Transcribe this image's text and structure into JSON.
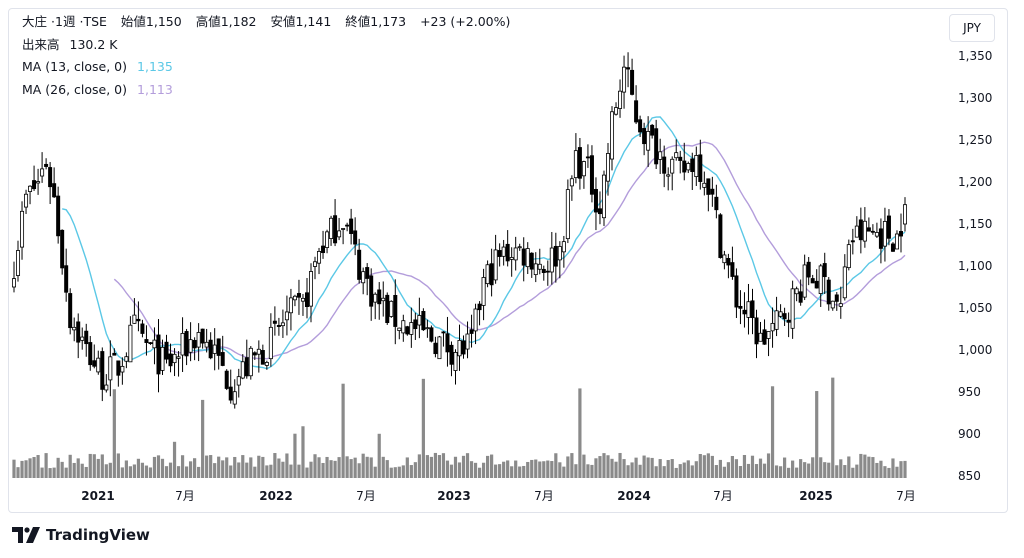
{
  "header": {
    "symbol": "大庄",
    "interval": "1週",
    "exchange": "TSE",
    "open_label": "始値",
    "open_value": "1,150",
    "high_label": "高値",
    "high_value": "1,182",
    "low_label": "安値",
    "low_value": "1,141",
    "close_label": "終値",
    "close_value": "1,173",
    "change": "+23 (+2.00%)"
  },
  "volume_legend": {
    "label": "出来高",
    "value": "130.2 K"
  },
  "ma_legends": [
    {
      "label": "MA (13, close, 0)",
      "value": "1,135",
      "color": "#5bc8e6"
    },
    {
      "label": "MA (26, close, 0)",
      "value": "1,113",
      "color": "#b39ddb"
    }
  ],
  "currency": "JPY",
  "brand": "TradingView",
  "colors": {
    "candle": "#000000",
    "volume": "#8a8a8a",
    "axis_text": "#131722",
    "border": "#e0e3eb"
  },
  "chart_data": {
    "type": "candlestick",
    "x_axis_labels": [
      "2021",
      "7月",
      "2022",
      "7月",
      "2023",
      "7月",
      "2024",
      "7月",
      "2025",
      "7月"
    ],
    "y_ticks": [
      "1,350",
      "1,300",
      "1,250",
      "1,200",
      "1,150",
      "1,100",
      "1,050",
      "1,000",
      "950",
      "900",
      "850"
    ],
    "ylim": [
      840,
      1360
    ],
    "close_anchors": [
      [
        0,
        1105
      ],
      [
        3,
        1180
      ],
      [
        6,
        1200
      ],
      [
        8,
        1225
      ],
      [
        10,
        1180
      ],
      [
        14,
        1040
      ],
      [
        18,
        1000
      ],
      [
        22,
        970
      ],
      [
        26,
        980
      ],
      [
        30,
        1025
      ],
      [
        34,
        1000
      ],
      [
        38,
        980
      ],
      [
        42,
        1000
      ],
      [
        46,
        1020
      ],
      [
        50,
        995
      ],
      [
        54,
        960
      ],
      [
        57,
        975
      ],
      [
        60,
        990
      ],
      [
        64,
        1010
      ],
      [
        68,
        1040
      ],
      [
        72,
        1050
      ],
      [
        76,
        1120
      ],
      [
        79,
        1140
      ],
      [
        82,
        1160
      ],
      [
        86,
        1100
      ],
      [
        90,
        1060
      ],
      [
        94,
        1040
      ],
      [
        98,
        1030
      ],
      [
        102,
        1020
      ],
      [
        106,
        1010
      ],
      [
        110,
        1000
      ],
      [
        114,
        1005
      ],
      [
        117,
        1080
      ],
      [
        120,
        1105
      ],
      [
        124,
        1120
      ],
      [
        128,
        1115
      ],
      [
        132,
        1100
      ],
      [
        136,
        1120
      ],
      [
        140,
        1230
      ],
      [
        143,
        1210
      ],
      [
        146,
        1170
      ],
      [
        149,
        1270
      ],
      [
        152,
        1335
      ],
      [
        155,
        1280
      ],
      [
        158,
        1250
      ],
      [
        162,
        1230
      ],
      [
        166,
        1210
      ],
      [
        170,
        1230
      ],
      [
        173,
        1200
      ],
      [
        176,
        1130
      ],
      [
        180,
        1060
      ],
      [
        183,
        1040
      ],
      [
        186,
        1010
      ],
      [
        190,
        1030
      ],
      [
        194,
        1060
      ],
      [
        198,
        1090
      ],
      [
        202,
        1080
      ],
      [
        206,
        1050
      ],
      [
        208,
        1130
      ],
      [
        212,
        1140
      ],
      [
        216,
        1140
      ],
      [
        220,
        1135
      ],
      [
        222,
        1173
      ]
    ],
    "ma13_last": 1135,
    "ma26_last": 1113,
    "last_volume": "130.2 K"
  }
}
